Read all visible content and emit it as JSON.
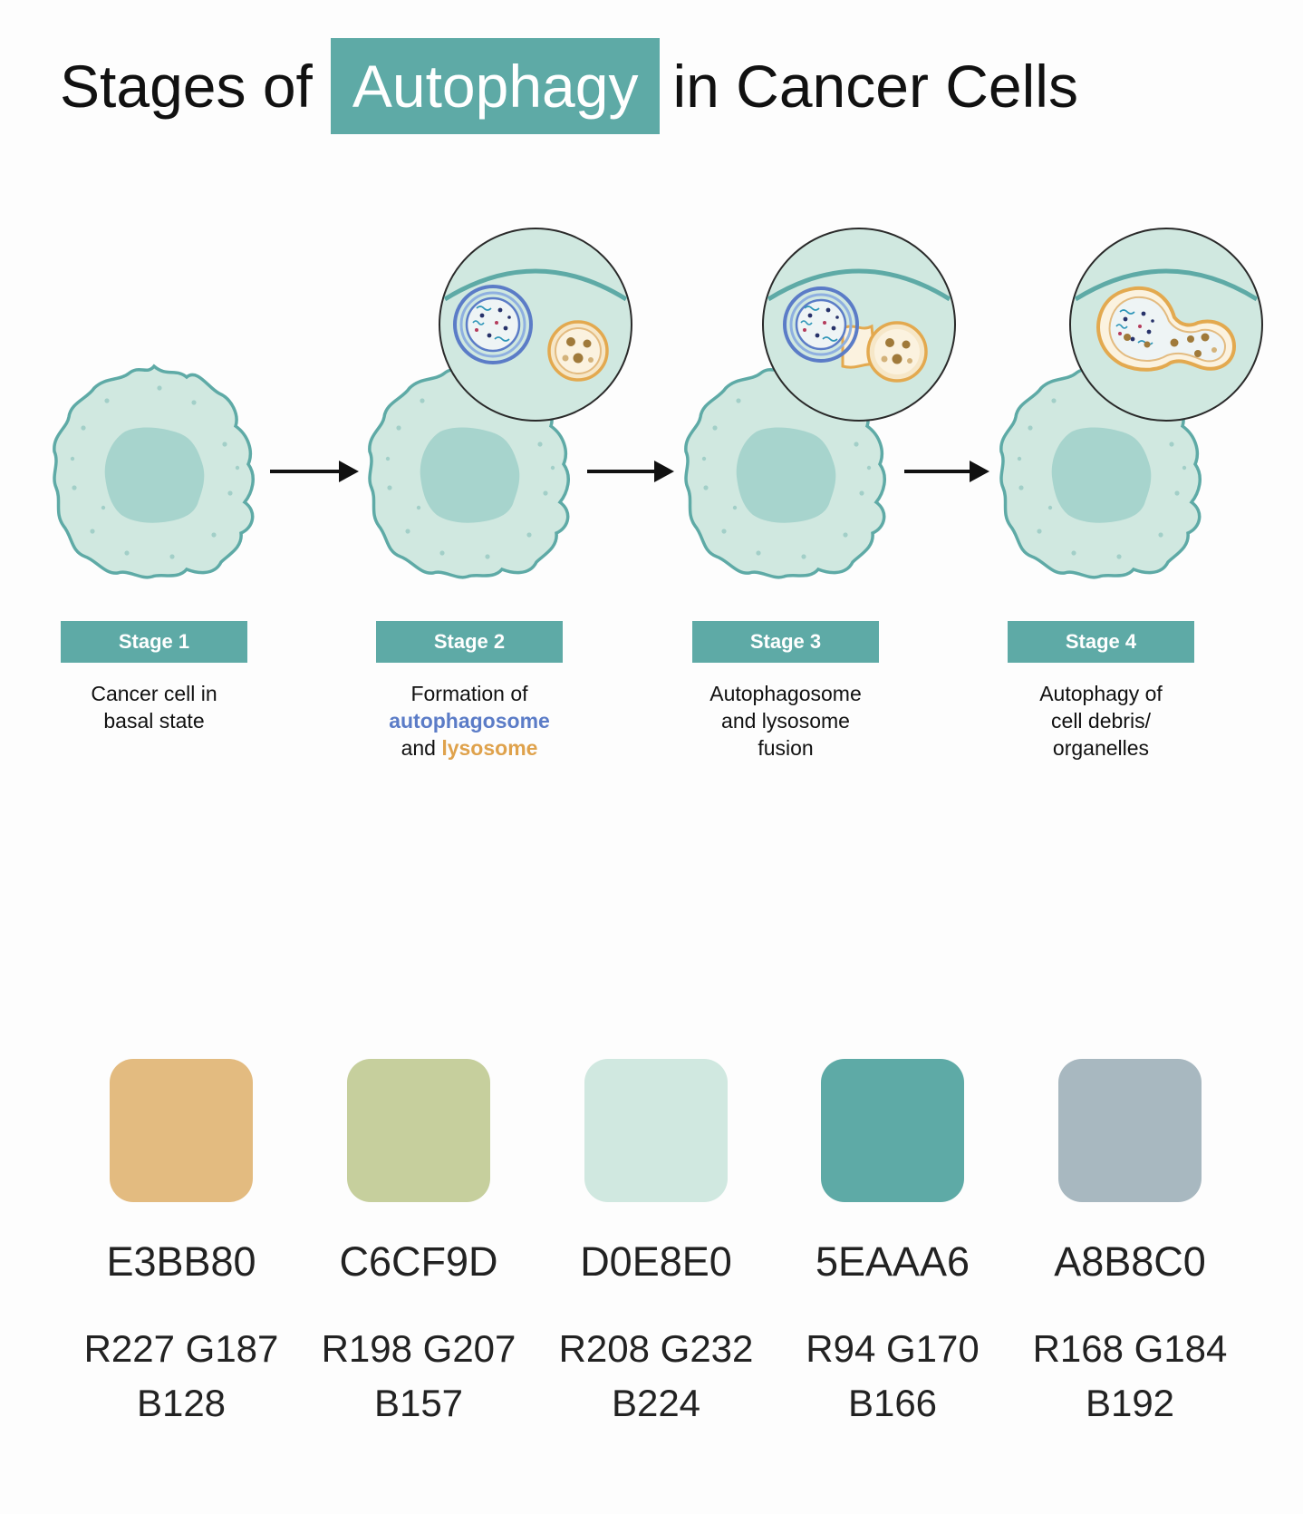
{
  "title": {
    "before": "Stages of",
    "highlight": "Autophagy",
    "after": "in Cancer Cells"
  },
  "stages": [
    {
      "label": "Stage 1",
      "desc_lines": [
        "Cancer cell in",
        "basal state"
      ]
    },
    {
      "label": "Stage 2",
      "desc_line1": "Formation of",
      "keyword_autophagosome": "autophagosome",
      "desc_and": "and ",
      "keyword_lysosome": "lysosome"
    },
    {
      "label": "Stage 3",
      "desc_lines": [
        "Autophagosome",
        "and lysosome",
        "fusion"
      ]
    },
    {
      "label": "Stage 4",
      "desc_lines": [
        "Autophagy of",
        "cell debris/",
        "organelles"
      ]
    }
  ],
  "palette": [
    {
      "hex": "E3BB80",
      "rgb_line1": "R227 G187",
      "rgb_line2": "B128",
      "color": "#e3bb80"
    },
    {
      "hex": "C6CF9D",
      "rgb_line1": "R198 G207",
      "rgb_line2": "B157",
      "color": "#c6cf9d"
    },
    {
      "hex": "D0E8E0",
      "rgb_line1": "R208 G232",
      "rgb_line2": "B224",
      "color": "#d0e8e0"
    },
    {
      "hex": "5EAAA6",
      "rgb_line1": "R94 G170",
      "rgb_line2": "B166",
      "color": "#5eaaa6"
    },
    {
      "hex": "A8B8C0",
      "rgb_line1": "R168 G184",
      "rgb_line2": "B192",
      "color": "#a8b8c0"
    }
  ],
  "colors": {
    "accent": "#5eaaa6",
    "cell_fill": "#d0e8e0",
    "autophagosome": "#5b7cc7",
    "lysosome": "#dfa24c",
    "arrow": "#111111"
  }
}
